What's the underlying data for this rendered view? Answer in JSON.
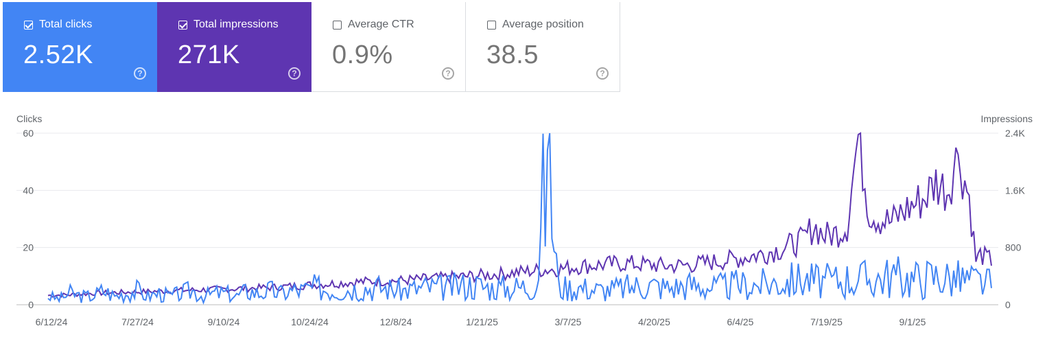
{
  "metrics": [
    {
      "label": "Total clicks",
      "value": "2.52K",
      "checked": true
    },
    {
      "label": "Total impressions",
      "value": "271K",
      "checked": true
    },
    {
      "label": "Average CTR",
      "value": "0.9%",
      "checked": false
    },
    {
      "label": "Average position",
      "value": "38.5",
      "checked": false
    }
  ],
  "icons": {
    "help": "help-circle-icon",
    "checkbox": "checkbox-icon"
  },
  "colors": {
    "clicks": "#4285f4",
    "impressions": "#5e35b1",
    "grid": "#e8eaed",
    "text": "#5f6368"
  },
  "chart_data": {
    "type": "line",
    "ylabel_left": "Clicks",
    "ylabel_right": "Impressions",
    "left_ticks": [
      "0",
      "20",
      "40",
      "60"
    ],
    "right_ticks": [
      "0",
      "800",
      "1.6K",
      "2.4K"
    ],
    "x_ticks": [
      "6/12/24",
      "7/27/24",
      "9/10/24",
      "10/24/24",
      "12/8/24",
      "1/21/25",
      "3/7/25",
      "4/20/25",
      "6/4/25",
      "7/19/25",
      "9/1/25"
    ],
    "ylim_left": [
      0,
      60
    ],
    "ylim_right": [
      0,
      2400
    ],
    "grid": true,
    "series": [
      {
        "name": "Clicks",
        "axis": "left",
        "x_start": "6/12/24",
        "x_end": "10/10/25",
        "keypoints": [
          [
            0,
            3
          ],
          [
            5,
            2
          ],
          [
            10,
            4
          ],
          [
            15,
            3
          ],
          [
            20,
            3
          ],
          [
            25,
            5
          ],
          [
            30,
            3
          ],
          [
            35,
            4
          ],
          [
            40,
            5
          ],
          [
            45,
            3
          ],
          [
            50,
            4
          ],
          [
            55,
            3
          ],
          [
            60,
            4
          ],
          [
            65,
            5
          ],
          [
            70,
            3
          ],
          [
            75,
            4
          ],
          [
            80,
            4
          ],
          [
            85,
            3
          ],
          [
            90,
            5
          ],
          [
            95,
            4
          ],
          [
            100,
            5
          ],
          [
            105,
            4
          ],
          [
            110,
            5
          ],
          [
            115,
            5
          ],
          [
            120,
            6
          ],
          [
            130,
            5
          ],
          [
            140,
            6
          ],
          [
            150,
            6
          ],
          [
            160,
            5
          ],
          [
            170,
            6
          ],
          [
            180,
            6
          ],
          [
            190,
            7
          ],
          [
            200,
            6
          ],
          [
            210,
            6
          ],
          [
            220,
            7
          ],
          [
            225,
            54
          ],
          [
            230,
            6
          ],
          [
            240,
            6
          ],
          [
            250,
            5
          ],
          [
            260,
            6
          ],
          [
            270,
            7
          ],
          [
            280,
            6
          ],
          [
            290,
            7
          ],
          [
            300,
            6
          ],
          [
            310,
            7
          ],
          [
            320,
            7
          ],
          [
            330,
            8
          ],
          [
            340,
            9
          ],
          [
            350,
            8
          ],
          [
            360,
            9
          ],
          [
            370,
            9
          ],
          [
            380,
            10
          ],
          [
            390,
            9
          ],
          [
            400,
            10
          ],
          [
            410,
            9
          ],
          [
            420,
            8
          ],
          [
            425,
            7
          ]
        ]
      },
      {
        "name": "Impressions",
        "axis": "right",
        "x_start": "6/12/24",
        "x_end": "10/10/25",
        "keypoints": [
          [
            0,
            130
          ],
          [
            10,
            140
          ],
          [
            20,
            160
          ],
          [
            30,
            170
          ],
          [
            40,
            180
          ],
          [
            50,
            190
          ],
          [
            60,
            200
          ],
          [
            70,
            210
          ],
          [
            80,
            220
          ],
          [
            90,
            230
          ],
          [
            100,
            240
          ],
          [
            110,
            260
          ],
          [
            120,
            280
          ],
          [
            130,
            300
          ],
          [
            140,
            320
          ],
          [
            150,
            330
          ],
          [
            160,
            340
          ],
          [
            170,
            360
          ],
          [
            180,
            380
          ],
          [
            190,
            400
          ],
          [
            200,
            420
          ],
          [
            210,
            450
          ],
          [
            220,
            480
          ],
          [
            230,
            500
          ],
          [
            240,
            540
          ],
          [
            250,
            560
          ],
          [
            260,
            580
          ],
          [
            270,
            560
          ],
          [
            280,
            540
          ],
          [
            290,
            560
          ],
          [
            300,
            600
          ],
          [
            310,
            640
          ],
          [
            320,
            700
          ],
          [
            330,
            780
          ],
          [
            340,
            900
          ],
          [
            345,
            1100
          ],
          [
            350,
            960
          ],
          [
            355,
            1000
          ],
          [
            360,
            1100
          ],
          [
            365,
            2380
          ],
          [
            370,
            1300
          ],
          [
            375,
            1200
          ],
          [
            380,
            1150
          ],
          [
            385,
            1300
          ],
          [
            390,
            1400
          ],
          [
            395,
            1500
          ],
          [
            400,
            1720
          ],
          [
            405,
            1600
          ],
          [
            410,
            2100
          ],
          [
            415,
            1500
          ],
          [
            418,
            620
          ],
          [
            420,
            700
          ],
          [
            425,
            620
          ]
        ]
      }
    ]
  }
}
